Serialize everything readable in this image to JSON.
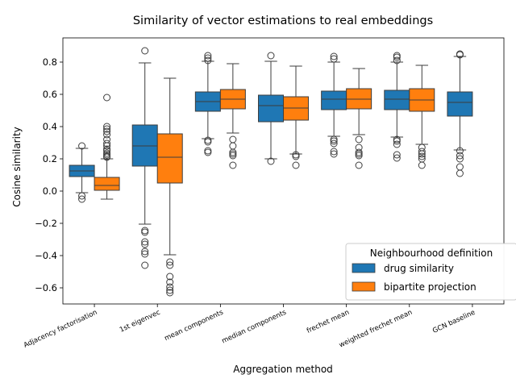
{
  "chart_data": {
    "type": "box",
    "title": "Similarity of vector estimations to real embeddings",
    "xlabel": "Aggregation method",
    "ylabel": "Cosine similarity",
    "ylim": [
      -0.7,
      0.95
    ],
    "yticks": [
      -0.6,
      -0.4,
      -0.2,
      0.0,
      0.2,
      0.4,
      0.6,
      0.8
    ],
    "ytick_labels": [
      "−0.6",
      "−0.4",
      "−0.2",
      "0.0",
      "0.2",
      "0.4",
      "0.6",
      "0.8"
    ],
    "grid": false,
    "categories": [
      "Adjacency factorisation",
      "1st eigenvec",
      "mean components",
      "median components",
      "frechet mean",
      "weighted frechet mean",
      "GCN baseline"
    ],
    "legend": {
      "title": "Neighbourhood definition",
      "position": "lower-right"
    },
    "series": [
      {
        "name": "drug similarity",
        "color": "#1f77b4",
        "boxes": [
          {
            "q1": 0.09,
            "median": 0.125,
            "q3": 0.16,
            "whisker_low": -0.01,
            "whisker_high": 0.265,
            "outliers": [
              0.28,
              -0.03,
              -0.05
            ]
          },
          {
            "q1": 0.155,
            "median": 0.28,
            "q3": 0.41,
            "whisker_low": -0.205,
            "whisker_high": 0.795,
            "outliers": [
              0.87,
              -0.245,
              -0.255,
              -0.315,
              -0.33,
              -0.375,
              -0.39,
              -0.46
            ]
          },
          {
            "q1": 0.495,
            "median": 0.555,
            "q3": 0.615,
            "whisker_low": 0.325,
            "whisker_high": 0.805,
            "outliers": [
              0.84,
              0.825,
              0.81,
              0.315,
              0.305,
              0.25,
              0.24
            ]
          },
          {
            "q1": 0.43,
            "median": 0.53,
            "q3": 0.595,
            "whisker_low": 0.2,
            "whisker_high": 0.805,
            "outliers": [
              0.84,
              0.185
            ]
          },
          {
            "q1": 0.505,
            "median": 0.57,
            "q3": 0.62,
            "whisker_low": 0.34,
            "whisker_high": 0.8,
            "outliers": [
              0.835,
              0.82,
              0.32,
              0.31,
              0.295,
              0.245,
              0.23
            ]
          },
          {
            "q1": 0.505,
            "median": 0.57,
            "q3": 0.625,
            "whisker_low": 0.335,
            "whisker_high": 0.8,
            "outliers": [
              0.84,
              0.83,
              0.81,
              0.32,
              0.31,
              0.29,
              0.225,
              0.205
            ]
          },
          {
            "q1": 0.465,
            "median": 0.55,
            "q3": 0.615,
            "whisker_low": 0.255,
            "whisker_high": 0.835,
            "outliers": [
              0.85,
              0.845,
              0.25,
              0.22,
              0.2,
              0.15,
              0.11
            ]
          }
        ]
      },
      {
        "name": "bipartite projection",
        "color": "#ff7f0e",
        "boxes": [
          {
            "q1": 0.005,
            "median": 0.035,
            "q3": 0.085,
            "whisker_low": -0.05,
            "whisker_high": 0.2,
            "outliers": [
              0.58,
              0.4,
              0.385,
              0.37,
              0.35,
              0.32,
              0.295,
              0.28,
              0.26,
              0.25,
              0.235,
              0.225,
              0.215,
              0.21
            ]
          },
          {
            "q1": 0.05,
            "median": 0.21,
            "q3": 0.355,
            "whisker_low": -0.395,
            "whisker_high": 0.7,
            "outliers": [
              -0.44,
              -0.46,
              -0.53,
              -0.565,
              -0.595,
              -0.615,
              -0.63
            ]
          },
          {
            "q1": 0.51,
            "median": 0.57,
            "q3": 0.63,
            "whisker_low": 0.36,
            "whisker_high": 0.79,
            "outliers": [
              0.32,
              0.28,
              0.24,
              0.23,
              0.22,
              0.16
            ]
          },
          {
            "q1": 0.44,
            "median": 0.515,
            "q3": 0.585,
            "whisker_low": 0.23,
            "whisker_high": 0.775,
            "outliers": [
              0.225,
              0.215,
              0.16
            ]
          },
          {
            "q1": 0.51,
            "median": 0.57,
            "q3": 0.635,
            "whisker_low": 0.35,
            "whisker_high": 0.76,
            "outliers": [
              0.32,
              0.27,
              0.24,
              0.23,
              0.22,
              0.16
            ]
          },
          {
            "q1": 0.495,
            "median": 0.565,
            "q3": 0.635,
            "whisker_low": 0.29,
            "whisker_high": 0.78,
            "outliers": [
              0.27,
              0.245,
              0.23,
              0.215,
              0.2,
              0.16
            ]
          },
          null
        ]
      }
    ]
  }
}
